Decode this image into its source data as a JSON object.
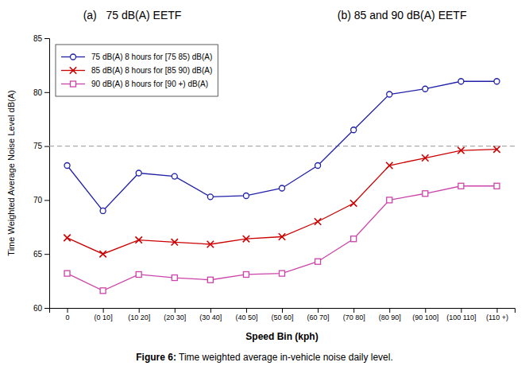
{
  "chart_data": {
    "type": "line",
    "title": "(a)   75 dB(A) EETF",
    "subtitle": "(b) 85 and 90 dB(A) EETF",
    "annotations": [
      "Figure 6:",
      " Time weighted average in-vehicle noise daily level."
    ],
    "x_label": "Speed Bin (kph)",
    "y_label": "Time Weighted Average Noise Level dB(A)",
    "categories": [
      "0",
      "(0 10]",
      "(10 20]",
      "(20 30]",
      "(30 40]",
      "(40 50]",
      "(50 60]",
      "(60 70]",
      "(70 80]",
      "(80 90]",
      "(90 100]",
      "(100 110]",
      "(110 +)"
    ],
    "series": [
      {
        "name": "75 dB(A) 8 hours for [75 85) dB(A)",
        "color": "#2020AA",
        "marker": "circle",
        "values": [
          73.2,
          69.0,
          72.5,
          72.2,
          70.3,
          70.4,
          71.1,
          73.2,
          76.5,
          79.8,
          80.3,
          81.0,
          81.0
        ]
      },
      {
        "name": "85 dB(A) 8 hours for [85 90) dB(A)",
        "color": "#CC0000",
        "marker": "x",
        "values": [
          66.5,
          65.0,
          66.3,
          66.1,
          65.9,
          66.4,
          66.6,
          68.0,
          69.7,
          73.2,
          73.9,
          74.6,
          74.7
        ]
      },
      {
        "name": "90 dB(A) 8 hours for [90 +) dB(A)",
        "color": "#CC44AA",
        "marker": "square",
        "values": [
          63.2,
          61.6,
          63.1,
          62.8,
          62.6,
          63.1,
          63.2,
          64.3,
          66.4,
          70.0,
          70.6,
          71.3,
          71.3
        ]
      }
    ],
    "hlines": [
      {
        "y": 75,
        "color": "#AAAAAA",
        "line_style": "dashed"
      }
    ],
    "ylim": [
      60,
      85
    ],
    "yticks": [
      60,
      65,
      70,
      75,
      80,
      85
    ],
    "grid": false,
    "legend": "upper left"
  }
}
